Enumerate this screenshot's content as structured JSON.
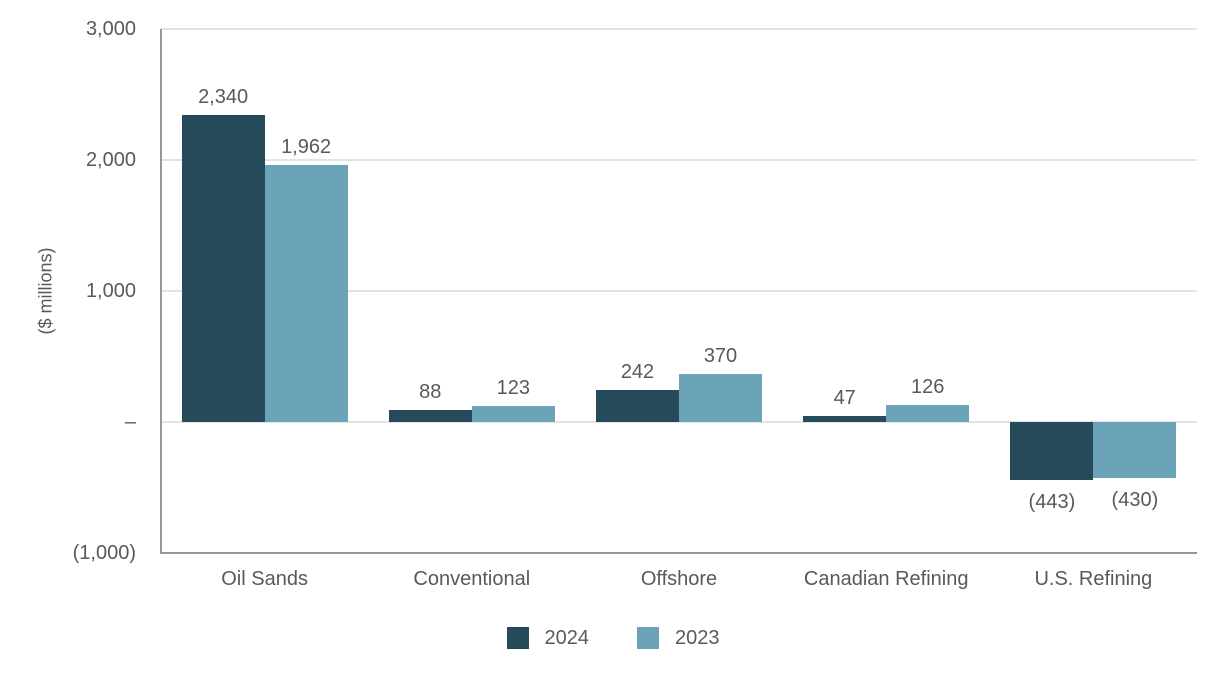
{
  "chart_data": {
    "type": "bar",
    "title": "",
    "xlabel": "",
    "ylabel": "($ millions)",
    "categories": [
      "Oil Sands",
      "Conventional",
      "Offshore",
      "Canadian Refining",
      "U.S. Refining"
    ],
    "series": [
      {
        "name": "2024",
        "color": "#254b5a",
        "values": [
          2340,
          88,
          242,
          47,
          -443
        ],
        "value_labels": [
          "2,340",
          "88",
          "242",
          "47",
          "(443)"
        ]
      },
      {
        "name": "2023",
        "color": "#6ba4b8",
        "values": [
          1962,
          123,
          370,
          126,
          -430
        ],
        "value_labels": [
          "1,962",
          "123",
          "370",
          "126",
          "(430)"
        ]
      }
    ],
    "ylim": [
      -1000,
      3000
    ],
    "y_ticks": [
      {
        "value": 3000,
        "label": "3,000"
      },
      {
        "value": 2000,
        "label": "2,000"
      },
      {
        "value": 1000,
        "label": "1,000"
      },
      {
        "value": 0,
        "label": "–"
      },
      {
        "value": -1000,
        "label": "(1,000)"
      }
    ],
    "grid": true,
    "legend_position": "bottom",
    "colors": {
      "gridline": "#e3e3e3",
      "axis_line": "#969696",
      "text": "#595959",
      "background": "#ffffff"
    }
  }
}
